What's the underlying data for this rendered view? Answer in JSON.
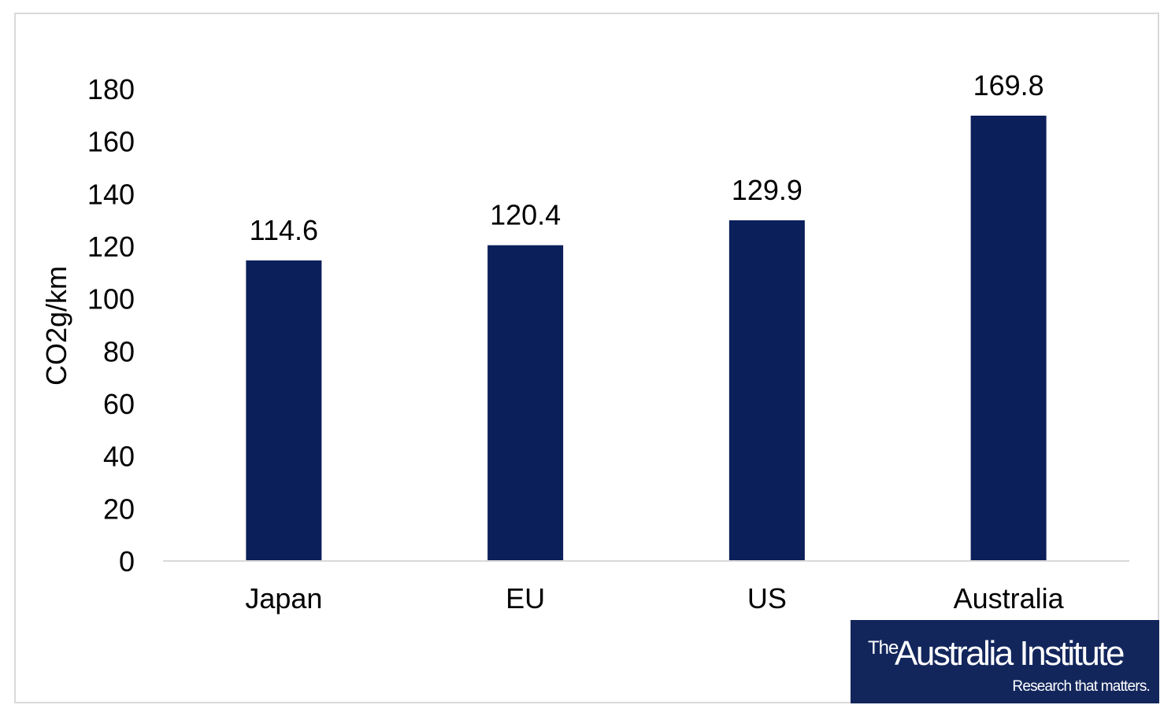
{
  "chart_data": {
    "type": "bar",
    "title": "",
    "xlabel": "",
    "ylabel": "CO2g/km",
    "ylim": [
      0,
      180
    ],
    "yticks": [
      0,
      20,
      40,
      60,
      80,
      100,
      120,
      140,
      160,
      180
    ],
    "categories": [
      "Japan",
      "EU",
      "US",
      "Australia"
    ],
    "values": [
      114.6,
      120.4,
      129.9,
      169.8
    ],
    "data_labels": [
      "114.6",
      "120.4",
      "129.9",
      "169.8"
    ],
    "bar_color": "#0b1f5a",
    "grid": false,
    "legend": "none"
  },
  "logo": {
    "the": "The",
    "name": "Australia Institute",
    "tagline": "Research that matters."
  }
}
